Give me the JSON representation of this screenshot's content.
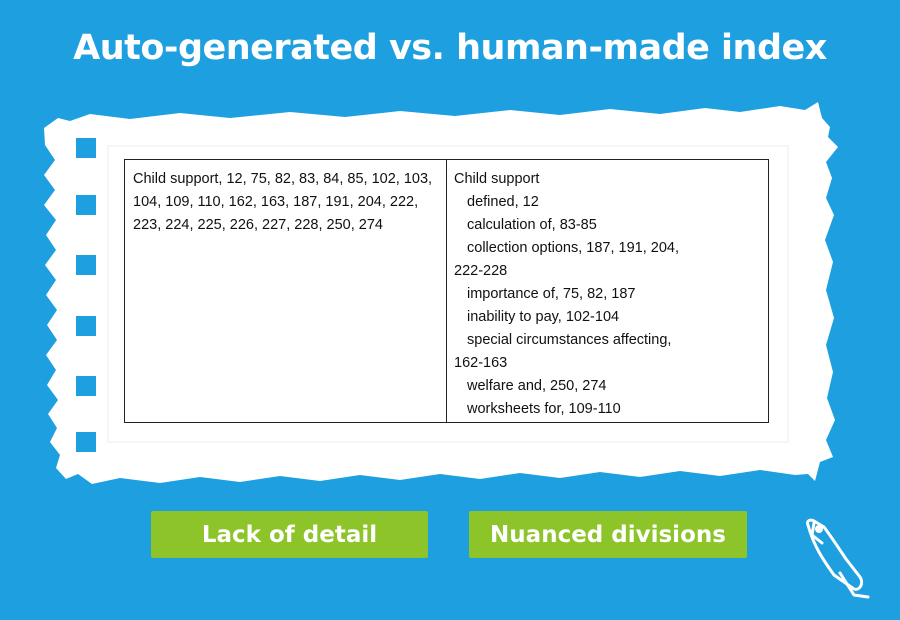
{
  "title": "Auto-generated vs. human-made index",
  "auto_index": {
    "text": "Child support, 12, 75, 82, 83, 84, 85, 102, 103, 104, 109, 110, 162, 163, 187, 191, 204, 222, 223, 224, 225, 226, 227, 228, 250, 274"
  },
  "human_index": {
    "heading": "Child support",
    "subentries": [
      {
        "first": "defined, 12",
        "rest": ""
      },
      {
        "first": "calculation of, 83-85",
        "rest": ""
      },
      {
        "first": "collection options, 187, 191, 204,",
        "rest": "222-228"
      },
      {
        "first": "importance of, 75, 82, 187",
        "rest": ""
      },
      {
        "first": "inability to pay, 102-104",
        "rest": ""
      },
      {
        "first": "special circumstances affecting,",
        "rest": "162-163"
      },
      {
        "first": "welfare and, 250, 274",
        "rest": ""
      },
      {
        "first": "worksheets for, 109-110",
        "rest": ""
      }
    ]
  },
  "buttons": {
    "left_label": "Lack of detail",
    "right_label": "Nuanced divisions"
  },
  "colors": {
    "background": "#1d9fe0",
    "button": "#8cc42a",
    "paper": "#ffffff"
  },
  "icons": {
    "logo": "bird-pen-logo-icon"
  }
}
